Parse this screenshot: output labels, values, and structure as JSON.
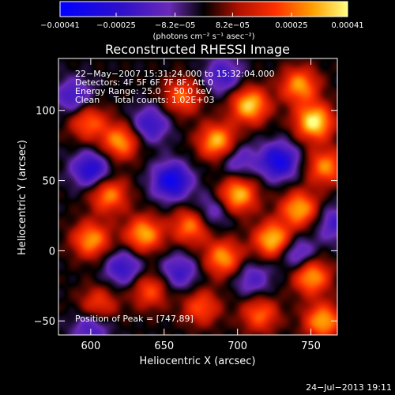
{
  "chart_data": {
    "type": "heatmap",
    "title": "Reconstructed RHESSI Image",
    "xlabel": "Heliocentric X (arcsec)",
    "ylabel": "Heliocentric Y (arcsec)",
    "xlim": [
      578,
      768
    ],
    "ylim": [
      -60,
      137
    ],
    "x_ticks": [
      {
        "value": 600,
        "label": "600"
      },
      {
        "value": 650,
        "label": "650"
      },
      {
        "value": 700,
        "label": "700"
      },
      {
        "value": 750,
        "label": "750"
      }
    ],
    "y_ticks": [
      {
        "value": -50,
        "label": "−50"
      },
      {
        "value": 0,
        "label": "0"
      },
      {
        "value": 50,
        "label": "50"
      },
      {
        "value": 100,
        "label": "100"
      }
    ],
    "colorbar": {
      "range": [
        -0.00041,
        0.00041
      ],
      "ticks": [
        {
          "value": -0.00041,
          "label": "−0.00041"
        },
        {
          "value": -0.00025,
          "label": "−0.00025"
        },
        {
          "value": -8.2e-05,
          "label": "−8.2e−05"
        },
        {
          "value": 8.2e-05,
          "label": "8.2e−05"
        },
        {
          "value": 0.00025,
          "label": "0.00025"
        },
        {
          "value": 0.00041,
          "label": "0.00041"
        }
      ],
      "units": "(photons cm⁻² s⁻¹ asec⁻²)"
    },
    "annotations": [
      "22−May−2007 15:31:24.000 to 15:32:04.000",
      "Detectors: 4F 5F 6F 7F 8F, Att 0",
      "Energy Range: 25.0 − 50.0 keV",
      "Clean     Total counts: 1.02E+03"
    ],
    "peak_label": "Position of Peak = [747,89]",
    "peak": [
      747,
      89
    ],
    "sources": [
      {
        "x": 752,
        "y": 92,
        "v": 1.0
      },
      {
        "x": 708,
        "y": 104,
        "v": 0.9
      },
      {
        "x": 686,
        "y": 78,
        "v": 0.85
      },
      {
        "x": 742,
        "y": 118,
        "v": 0.75
      },
      {
        "x": 700,
        "y": 40,
        "v": 0.85
      },
      {
        "x": 742,
        "y": 30,
        "v": 0.8
      },
      {
        "x": 760,
        "y": 60,
        "v": 0.7
      },
      {
        "x": 724,
        "y": 8,
        "v": 0.9
      },
      {
        "x": 690,
        "y": -5,
        "v": 0.75
      },
      {
        "x": 750,
        "y": -18,
        "v": 0.8
      },
      {
        "x": 758,
        "y": -50,
        "v": 0.8
      },
      {
        "x": 715,
        "y": -45,
        "v": 0.6
      },
      {
        "x": 668,
        "y": 18,
        "v": 0.7
      },
      {
        "x": 636,
        "y": 12,
        "v": 0.8
      },
      {
        "x": 600,
        "y": 8,
        "v": 0.75
      },
      {
        "x": 612,
        "y": 40,
        "v": 0.7
      },
      {
        "x": 620,
        "y": 78,
        "v": 0.75
      },
      {
        "x": 598,
        "y": 92,
        "v": 0.6
      },
      {
        "x": 662,
        "y": 110,
        "v": 0.6
      },
      {
        "x": 640,
        "y": -28,
        "v": 0.55
      },
      {
        "x": 605,
        "y": -38,
        "v": 0.5
      },
      {
        "x": 675,
        "y": -40,
        "v": 0.55
      },
      {
        "x": 655,
        "y": 50,
        "v": -0.85
      },
      {
        "x": 728,
        "y": 64,
        "v": -0.8
      },
      {
        "x": 600,
        "y": 58,
        "v": -0.7
      },
      {
        "x": 640,
        "y": 90,
        "v": -0.55
      },
      {
        "x": 588,
        "y": 110,
        "v": -0.5
      },
      {
        "x": 690,
        "y": 125,
        "v": -0.5
      },
      {
        "x": 740,
        "y": -2,
        "v": -0.5
      },
      {
        "x": 622,
        "y": -12,
        "v": -0.55
      },
      {
        "x": 682,
        "y": 28,
        "v": -0.4
      },
      {
        "x": 660,
        "y": -15,
        "v": -0.5
      },
      {
        "x": 600,
        "y": -55,
        "v": -0.45
      },
      {
        "x": 710,
        "y": -20,
        "v": -0.4
      },
      {
        "x": 766,
        "y": 20,
        "v": -0.45
      },
      {
        "x": 700,
        "y": 65,
        "v": -0.4
      }
    ]
  },
  "footer": {
    "timestamp": "24−Jul−2013 19:11"
  },
  "colors": {
    "background": "#000000",
    "text": "#ffffff"
  }
}
